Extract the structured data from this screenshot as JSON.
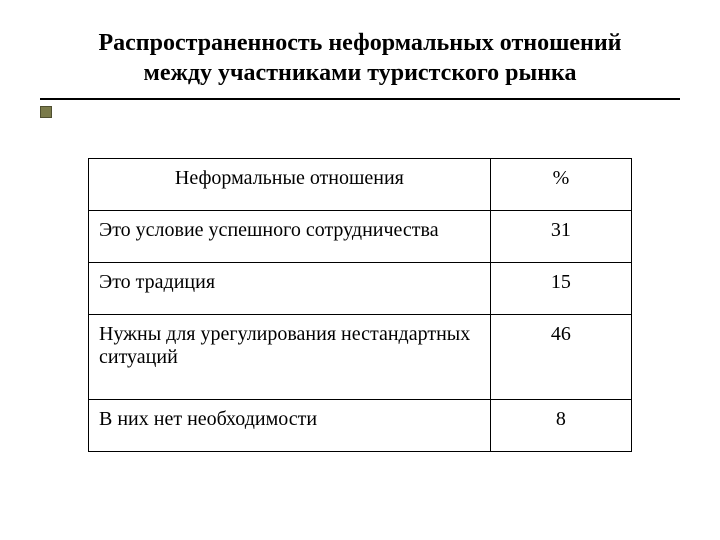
{
  "title": "Распространенность неформальных отношений между участниками туристского рынка",
  "table": {
    "columns": [
      "Неформальные отношения",
      "%"
    ],
    "rows": [
      {
        "label": "Это условие успешного сотрудничества",
        "value": "31"
      },
      {
        "label": "Это традиция",
        "value": "15"
      },
      {
        "label": "Нужны для урегулирования нестандартных ситуаций",
        "value": "46"
      },
      {
        "label": "В них нет необходимости",
        "value": "8"
      }
    ],
    "border_color": "#000000",
    "font_size_pt": 15,
    "background_color": "#ffffff"
  },
  "style": {
    "title_fontsize_pt": 18,
    "rule_color": "#000000",
    "bullet_color": "#7a7a4a"
  }
}
